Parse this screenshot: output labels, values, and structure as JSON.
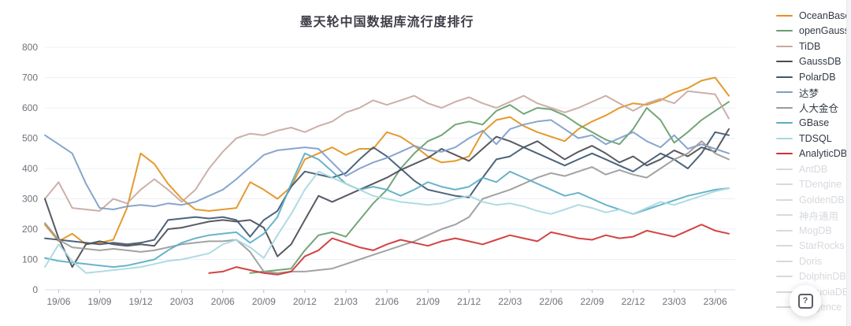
{
  "page": {
    "help_button": {
      "icon": "question-mark",
      "tooltip_glyph": "?"
    }
  },
  "chart_data": {
    "type": "line",
    "title": "墨天轮中国数据库流行度排行",
    "x": [
      "19/05",
      "19/06",
      "19/07",
      "19/08",
      "19/09",
      "19/10",
      "19/11",
      "19/12",
      "20/01",
      "20/02",
      "20/03",
      "20/04",
      "20/05",
      "20/06",
      "20/07",
      "20/08",
      "20/09",
      "20/10",
      "20/11",
      "20/12",
      "21/01",
      "21/02",
      "21/03",
      "21/04",
      "21/05",
      "21/06",
      "21/07",
      "21/08",
      "21/09",
      "21/10",
      "21/11",
      "21/12",
      "22/01",
      "22/02",
      "22/03",
      "22/04",
      "22/05",
      "22/06",
      "22/07",
      "22/08",
      "22/09",
      "22/10",
      "22/11",
      "22/12",
      "23/01",
      "23/02",
      "23/03",
      "23/04",
      "23/05",
      "23/06",
      "23/07"
    ],
    "x_tick_labels": [
      "19/06",
      "19/09",
      "19/12",
      "20/03",
      "20/06",
      "20/09",
      "20/12",
      "21/03",
      "21/06",
      "21/09",
      "21/12",
      "22/03",
      "22/06",
      "22/09",
      "22/12",
      "23/03",
      "23/06"
    ],
    "ylim": [
      0,
      800
    ],
    "y_ticks": [
      0,
      100,
      200,
      300,
      400,
      500,
      600,
      700,
      800
    ],
    "grid": "horizontal",
    "legend_position": "right",
    "disabled_color": "#d6d9de",
    "grid_color": "#e9f1f8",
    "axis_line_color": "#d7dde4",
    "tick_text_color": "#70707b",
    "series": [
      {
        "name": "OceanBase",
        "color": "#e2911c",
        "enabled": true,
        "values": [
          215,
          160,
          185,
          150,
          155,
          165,
          270,
          450,
          415,
          350,
          300,
          265,
          260,
          265,
          270,
          355,
          330,
          300,
          340,
          430,
          450,
          470,
          445,
          465,
          465,
          520,
          505,
          475,
          440,
          420,
          425,
          440,
          520,
          560,
          570,
          540,
          520,
          505,
          490,
          530,
          555,
          575,
          600,
          615,
          610,
          625,
          650,
          665,
          690,
          700,
          640
        ]
      },
      {
        "name": "openGauss",
        "color": "#669e6b",
        "enabled": true,
        "values": [
          null,
          null,
          null,
          null,
          null,
          null,
          null,
          null,
          null,
          null,
          null,
          null,
          null,
          null,
          null,
          55,
          60,
          65,
          70,
          130,
          180,
          190,
          175,
          230,
          285,
          330,
          400,
          450,
          490,
          510,
          545,
          555,
          545,
          590,
          610,
          580,
          600,
          595,
          575,
          545,
          520,
          495,
          480,
          530,
          600,
          560,
          485,
          520,
          560,
          590,
          620
        ]
      },
      {
        "name": "TiDB",
        "color": "#c9a8a2",
        "enabled": true,
        "values": [
          300,
          355,
          270,
          265,
          260,
          300,
          285,
          330,
          365,
          330,
          290,
          330,
          400,
          455,
          500,
          515,
          510,
          525,
          535,
          520,
          540,
          555,
          585,
          600,
          625,
          610,
          625,
          640,
          615,
          600,
          620,
          635,
          615,
          600,
          620,
          640,
          615,
          600,
          585,
          600,
          620,
          640,
          615,
          590,
          615,
          630,
          615,
          655,
          650,
          645,
          565
        ]
      },
      {
        "name": "GaussDB",
        "color": "#4b4b55",
        "enabled": true,
        "values": [
          300,
          170,
          75,
          150,
          160,
          150,
          145,
          150,
          145,
          200,
          205,
          215,
          225,
          230,
          225,
          230,
          205,
          110,
          150,
          230,
          310,
          290,
          310,
          330,
          350,
          370,
          395,
          415,
          435,
          465,
          445,
          425,
          465,
          505,
          490,
          470,
          490,
          460,
          430,
          455,
          475,
          450,
          420,
          440,
          410,
          430,
          460,
          440,
          470,
          455,
          530
        ]
      },
      {
        "name": "PolarDB",
        "color": "#3d5771",
        "enabled": true,
        "values": [
          170,
          165,
          160,
          155,
          150,
          155,
          150,
          155,
          165,
          230,
          235,
          240,
          235,
          240,
          230,
          175,
          230,
          260,
          340,
          390,
          380,
          370,
          385,
          430,
          470,
          440,
          400,
          360,
          330,
          320,
          310,
          305,
          370,
          430,
          440,
          470,
          450,
          430,
          410,
          430,
          450,
          430,
          410,
          390,
          420,
          450,
          430,
          400,
          450,
          520,
          510
        ]
      },
      {
        "name": "达梦",
        "color": "#7e9dc9",
        "enabled": true,
        "values": [
          510,
          480,
          450,
          350,
          270,
          265,
          275,
          280,
          275,
          285,
          280,
          290,
          310,
          330,
          365,
          405,
          445,
          460,
          465,
          470,
          465,
          420,
          375,
          400,
          420,
          435,
          455,
          475,
          460,
          455,
          470,
          500,
          525,
          480,
          530,
          545,
          555,
          560,
          530,
          500,
          510,
          480,
          500,
          520,
          490,
          470,
          510,
          465,
          480,
          465,
          450
        ]
      },
      {
        "name": "人大金仓",
        "color": "#9a9a9a",
        "enabled": true,
        "values": [
          220,
          165,
          140,
          135,
          130,
          135,
          130,
          125,
          130,
          140,
          150,
          155,
          160,
          160,
          165,
          125,
          60,
          55,
          60,
          60,
          65,
          70,
          85,
          100,
          115,
          130,
          145,
          160,
          180,
          200,
          215,
          240,
          300,
          315,
          330,
          350,
          370,
          385,
          375,
          390,
          405,
          380,
          395,
          380,
          370,
          400,
          430,
          450,
          490,
          450,
          430
        ]
      },
      {
        "name": "GBase",
        "color": "#5baec5",
        "enabled": true,
        "values": [
          105,
          95,
          90,
          85,
          80,
          75,
          80,
          90,
          100,
          130,
          155,
          170,
          180,
          185,
          190,
          155,
          185,
          240,
          350,
          450,
          430,
          390,
          350,
          330,
          340,
          330,
          310,
          330,
          355,
          340,
          330,
          340,
          370,
          355,
          390,
          370,
          350,
          330,
          310,
          320,
          300,
          280,
          265,
          250,
          265,
          280,
          295,
          310,
          320,
          330,
          335
        ]
      },
      {
        "name": "TDSQL",
        "color": "#a8d8e0",
        "enabled": true,
        "values": [
          75,
          150,
          95,
          55,
          60,
          65,
          70,
          75,
          85,
          95,
          100,
          110,
          120,
          150,
          165,
          140,
          105,
          180,
          250,
          330,
          390,
          370,
          350,
          330,
          310,
          300,
          290,
          285,
          280,
          285,
          300,
          310,
          290,
          280,
          285,
          275,
          260,
          250,
          265,
          280,
          270,
          255,
          265,
          250,
          270,
          290,
          280,
          295,
          310,
          325,
          335
        ]
      },
      {
        "name": "AnalyticDB",
        "color": "#cf3333",
        "enabled": true,
        "values": [
          null,
          null,
          null,
          null,
          null,
          null,
          null,
          null,
          null,
          null,
          null,
          null,
          55,
          60,
          75,
          65,
          55,
          50,
          60,
          110,
          130,
          170,
          155,
          140,
          130,
          150,
          165,
          155,
          145,
          160,
          170,
          160,
          150,
          165,
          180,
          170,
          160,
          190,
          180,
          170,
          165,
          180,
          170,
          175,
          195,
          185,
          175,
          195,
          215,
          195,
          185
        ]
      },
      {
        "name": "AntDB",
        "enabled": false,
        "values": null
      },
      {
        "name": "TDengine",
        "enabled": false,
        "values": null
      },
      {
        "name": "GoldenDB",
        "enabled": false,
        "values": null
      },
      {
        "name": "神舟通用",
        "enabled": false,
        "values": null
      },
      {
        "name": "MogDB",
        "enabled": false,
        "values": null
      },
      {
        "name": "StarRocks",
        "enabled": false,
        "values": null
      },
      {
        "name": "Doris",
        "enabled": false,
        "values": null
      },
      {
        "name": "DolphinDB",
        "enabled": false,
        "values": null
      },
      {
        "name": "SequoiaDB",
        "enabled": false,
        "values": null
      },
      {
        "name": "Kyligence",
        "enabled": false,
        "values": null
      }
    ]
  }
}
